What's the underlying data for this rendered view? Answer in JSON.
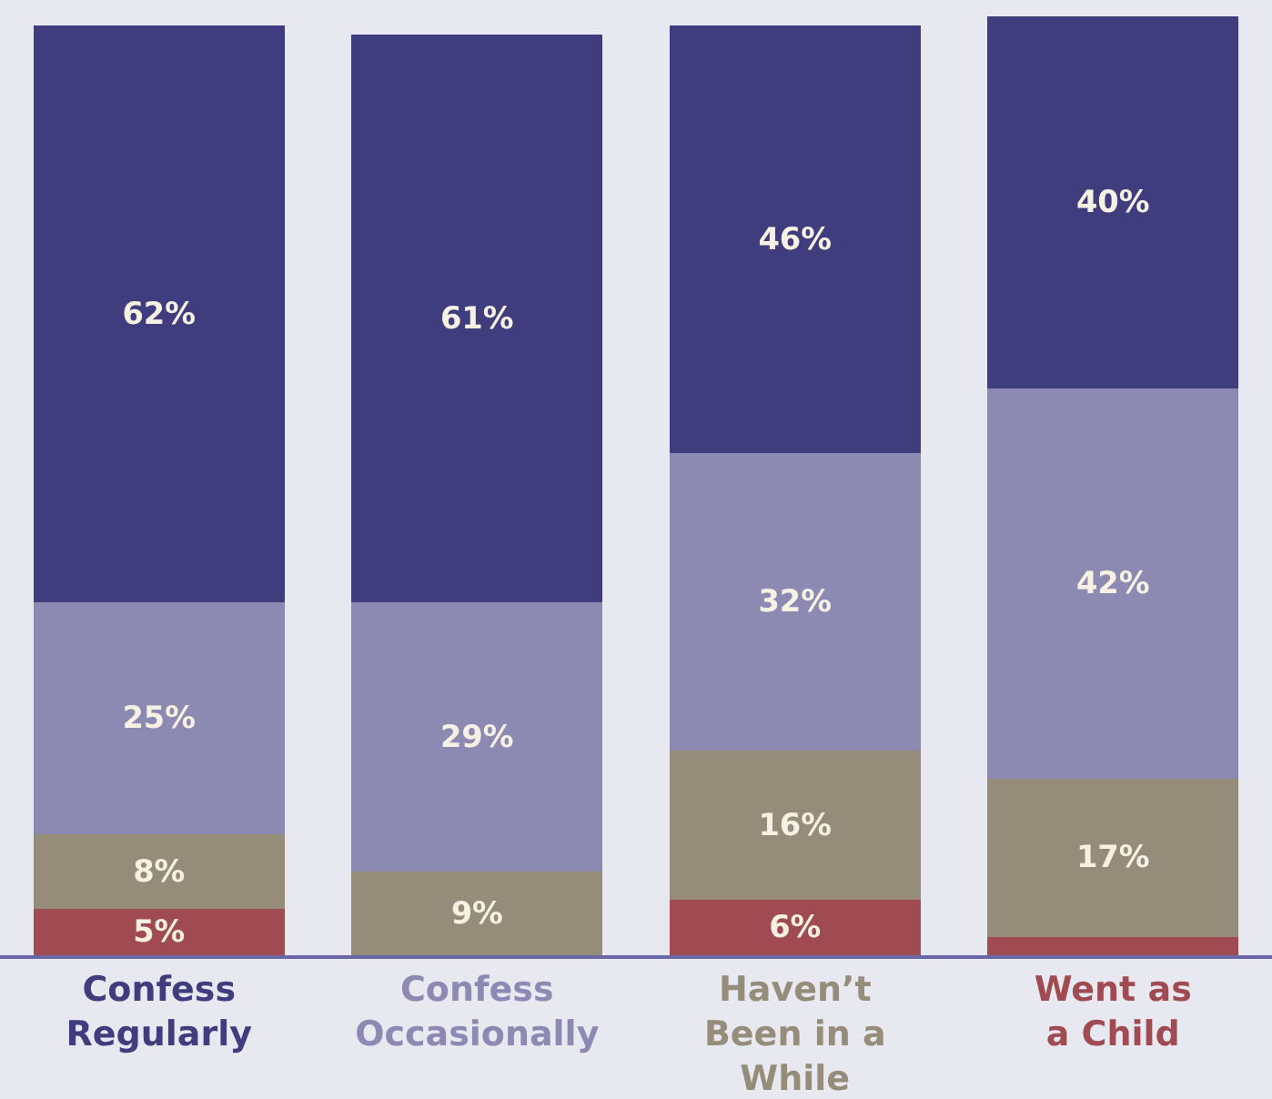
{
  "chart_data": {
    "type": "bar",
    "stacked": true,
    "categories": [
      "Confess\nRegularly",
      "Confess\nOccasionally",
      "Haven’t\nBeen in a\nWhile",
      "Went as\na Child"
    ],
    "series": [
      {
        "color": "#a04a52",
        "values": [
          5,
          null,
          6,
          2
        ],
        "value_labels": [
          "5%",
          null,
          "6%",
          null
        ]
      },
      {
        "color": "#958c7a",
        "values": [
          8,
          9,
          16,
          17
        ],
        "value_labels": [
          "8%",
          "9%",
          "16%",
          "17%"
        ]
      },
      {
        "color": "#8c89b3",
        "values": [
          25,
          29,
          32,
          42
        ],
        "value_labels": [
          "25%",
          "29%",
          "32%",
          "42%"
        ]
      },
      {
        "color": "#3f3d7e",
        "values": [
          62,
          61,
          46,
          40
        ],
        "value_labels": [
          "62%",
          "61%",
          "46%",
          "40%"
        ]
      }
    ],
    "ylim": [
      0,
      101
    ],
    "tick_labels": "x"
  }
}
